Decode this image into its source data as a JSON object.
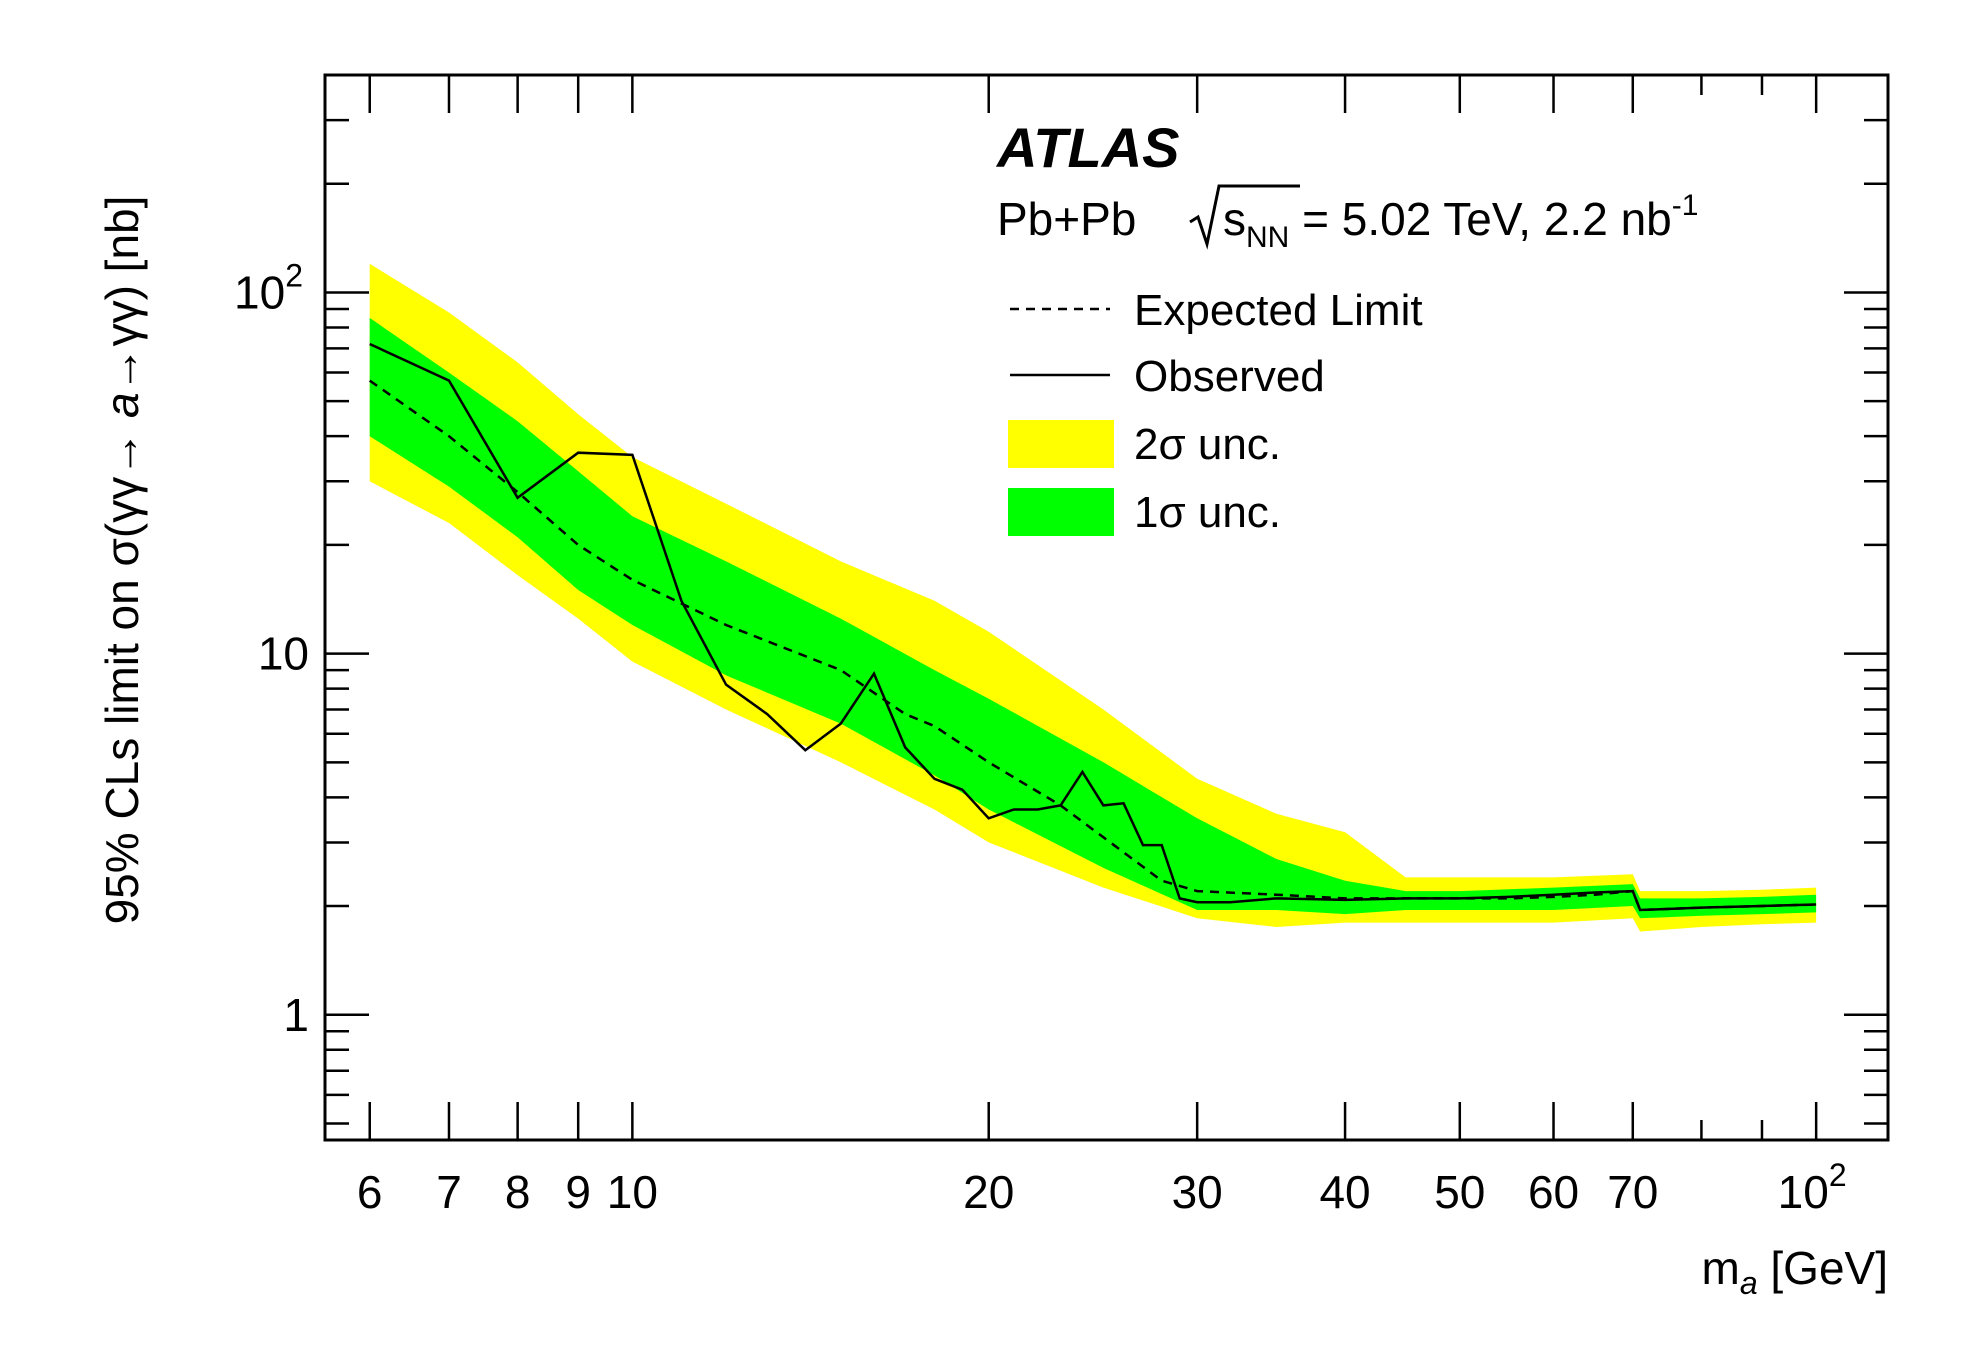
{
  "chart_data": {
    "type": "line",
    "xscale": "log",
    "yscale": "log",
    "xlim": [
      5.5,
      115
    ],
    "ylim": [
      0.45,
      400
    ],
    "xlabel_main": "m",
    "xlabel_sub": "a",
    "xlabel_unit": " [GeV]",
    "ylabel_prefix": "95% CLs limit on σ(γγ→ ",
    "ylabel_italic": "a",
    "ylabel_suffix": "→γγ) [nb]",
    "experiment": "ATLAS",
    "subtitle": {
      "system": "Pb+Pb",
      "sqrt": "s",
      "sqrt_sub": "NN",
      "energy": " = 5.02 TeV, 2.2 nb",
      "exp": "-1"
    },
    "x_ticks": [
      {
        "v": 6,
        "label": "6"
      },
      {
        "v": 7,
        "label": "7"
      },
      {
        "v": 8,
        "label": "8"
      },
      {
        "v": 9,
        "label": "9"
      },
      {
        "v": 10,
        "label": "10"
      },
      {
        "v": 20,
        "label": "20"
      },
      {
        "v": 30,
        "label": "30"
      },
      {
        "v": 40,
        "label": "40"
      },
      {
        "v": 50,
        "label": "50"
      },
      {
        "v": 60,
        "label": "60"
      },
      {
        "v": 70,
        "label": "70"
      }
    ],
    "x_tick_last": {
      "v": 100,
      "base": "10",
      "exp": "2"
    },
    "y_ticks": [
      {
        "v": 1,
        "label": "1",
        "type": "plain"
      },
      {
        "v": 10,
        "label": "10",
        "type": "plain"
      },
      {
        "v": 100,
        "base": "10",
        "exp": "2",
        "type": "power"
      }
    ],
    "legend": {
      "placement": "top-right",
      "expected": "Expected Limit",
      "observed": "Observed",
      "two_sigma": "2σ unc.",
      "one_sigma": "1σ unc."
    },
    "colors": {
      "two_sigma": "#ffff00",
      "one_sigma": "#00ff00",
      "line": "#000000"
    },
    "expected": {
      "x": [
        6,
        7,
        8,
        9,
        10,
        12,
        15,
        17,
        18,
        20,
        23,
        25,
        28,
        30,
        35,
        40,
        45,
        50,
        55,
        60,
        65,
        70,
        71,
        80,
        90,
        100
      ],
      "y": [
        57,
        40,
        28,
        20,
        16,
        12,
        9,
        6.8,
        6.3,
        5.0,
        3.8,
        3.1,
        2.35,
        2.2,
        2.15,
        2.1,
        2.1,
        2.1,
        2.1,
        2.12,
        2.15,
        2.2,
        1.95,
        1.98,
        2.0,
        2.02
      ]
    },
    "observed": {
      "x": [
        6,
        7,
        8,
        9,
        10,
        11,
        12,
        13,
        14,
        15,
        16,
        17,
        18,
        19,
        20,
        21,
        22,
        23,
        24,
        25,
        26,
        27,
        28,
        29,
        30,
        32,
        35,
        40,
        45,
        50,
        55,
        60,
        65,
        70,
        71,
        80,
        90,
        100
      ],
      "y": [
        72,
        57,
        27,
        36,
        35.5,
        14,
        8.2,
        6.8,
        5.4,
        6.4,
        8.8,
        5.5,
        4.5,
        4.2,
        3.5,
        3.7,
        3.7,
        3.8,
        4.7,
        3.8,
        3.85,
        2.95,
        2.95,
        2.1,
        2.05,
        2.05,
        2.1,
        2.08,
        2.1,
        2.1,
        2.12,
        2.15,
        2.18,
        2.2,
        1.95,
        1.98,
        2.0,
        2.02
      ]
    },
    "band_1sigma": {
      "x": [
        6,
        7,
        8,
        9,
        10,
        12,
        15,
        18,
        20,
        25,
        30,
        35,
        40,
        45,
        50,
        60,
        70,
        71,
        80,
        90,
        100
      ],
      "lo": [
        40,
        29,
        21,
        15,
        12,
        8.7,
        6.4,
        4.6,
        3.7,
        2.55,
        1.95,
        1.95,
        1.9,
        1.95,
        1.95,
        1.95,
        2.0,
        1.85,
        1.88,
        1.9,
        1.92
      ],
      "hi": [
        85,
        60,
        44,
        32,
        24,
        18,
        12.5,
        9.0,
        7.5,
        5.0,
        3.5,
        2.7,
        2.35,
        2.2,
        2.2,
        2.25,
        2.3,
        2.1,
        2.1,
        2.12,
        2.15
      ]
    },
    "band_2sigma": {
      "x": [
        6,
        7,
        8,
        9,
        10,
        12,
        15,
        18,
        20,
        25,
        30,
        35,
        40,
        45,
        50,
        60,
        70,
        71,
        80,
        90,
        100
      ],
      "lo": [
        30,
        23,
        16.5,
        12.5,
        9.5,
        7.0,
        5.0,
        3.7,
        3.0,
        2.25,
        1.85,
        1.75,
        1.8,
        1.8,
        1.8,
        1.8,
        1.85,
        1.7,
        1.75,
        1.78,
        1.8
      ],
      "hi": [
        120,
        88,
        64,
        46,
        35,
        26,
        18,
        14,
        11.5,
        7.0,
        4.5,
        3.6,
        3.2,
        2.4,
        2.4,
        2.4,
        2.45,
        2.2,
        2.2,
        2.22,
        2.25
      ]
    }
  }
}
